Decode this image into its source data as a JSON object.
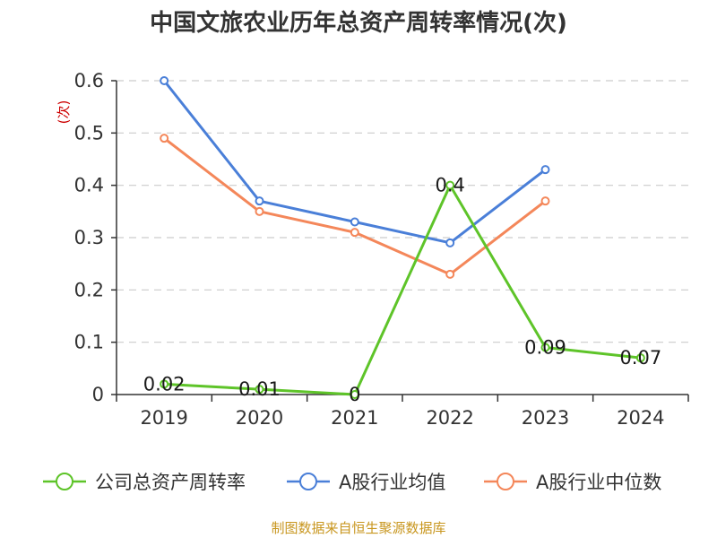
{
  "chart_data": {
    "type": "line",
    "title": "中国文旅农业历年总资产周转率情况(次)",
    "ylabel": "(次)",
    "xlabel": "",
    "categories": [
      "2019",
      "2020",
      "2021",
      "2022",
      "2023",
      "2024"
    ],
    "yticks": [
      "0",
      "0.1",
      "0.2",
      "0.3",
      "0.4",
      "0.5",
      "0.6"
    ],
    "ylim": [
      0,
      0.6
    ],
    "grid": true,
    "legend_position": "bottom",
    "series": [
      {
        "name": "公司总资产周转率",
        "color": "#5ec429",
        "values": [
          0.02,
          0.01,
          0,
          0.4,
          0.09,
          0.07
        ],
        "labels": [
          "0.02",
          "0.01",
          "0",
          "0.4",
          "0.09",
          "0.07"
        ]
      },
      {
        "name": "A股行业均值",
        "color": "#4a7fd8",
        "values": [
          0.6,
          0.37,
          0.33,
          0.29,
          0.43,
          null
        ]
      },
      {
        "name": "A股行业中位数",
        "color": "#f4875a",
        "values": [
          0.49,
          0.35,
          0.31,
          0.23,
          0.37,
          null
        ]
      }
    ],
    "source": "制图数据来自恒生聚源数据库"
  }
}
